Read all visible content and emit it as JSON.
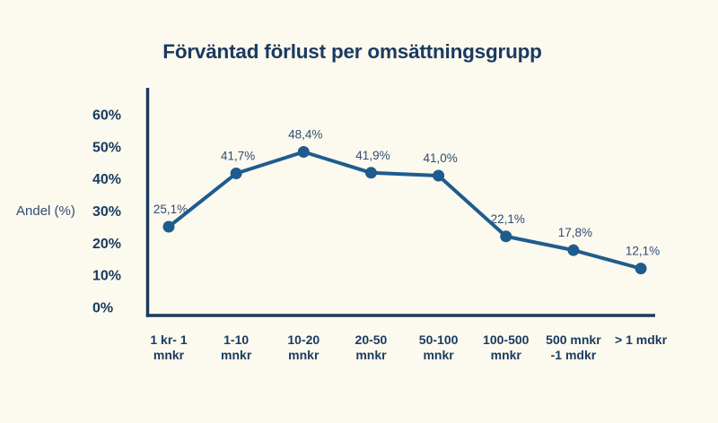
{
  "page": {
    "background": "#fcf9ef"
  },
  "chart_data": {
    "type": "line",
    "title": "Förväntad förlust per omsättningsgrupp",
    "xlabel": "",
    "ylabel": "Andel (%)",
    "categories": [
      [
        "1 kr- 1",
        "mnkr"
      ],
      [
        "1-10",
        "mnkr"
      ],
      [
        "10-20",
        "mnkr"
      ],
      [
        "20-50",
        "mnkr"
      ],
      [
        "50-100",
        "mnkr"
      ],
      [
        "100-500",
        "mnkr"
      ],
      [
        "500 mnkr",
        "-1 mdkr"
      ],
      [
        "> 1 mdkr"
      ]
    ],
    "values": [
      25.1,
      41.7,
      48.4,
      41.9,
      41.0,
      22.1,
      17.8,
      12.1
    ],
    "point_labels": [
      "25,1%",
      "41,7%",
      "48,4%",
      "41,9%",
      "41,0%",
      "22,1%",
      "17,8%",
      "12,1%"
    ],
    "y_ticks": [
      "60%",
      "50%",
      "40%",
      "30%",
      "20%",
      "10%",
      "0%"
    ],
    "y_tick_values": [
      60,
      50,
      40,
      30,
      20,
      10,
      0
    ],
    "ylim": [
      0,
      60
    ],
    "grid": false,
    "legend": "none",
    "colors": {
      "line": "#1f5c8e",
      "point": "#1f5c8e",
      "axis": "#1a3a5e",
      "title_text": "#1b3a60",
      "tick_text": "#1a3a5e",
      "data_label_text": "#2f4d70"
    }
  }
}
